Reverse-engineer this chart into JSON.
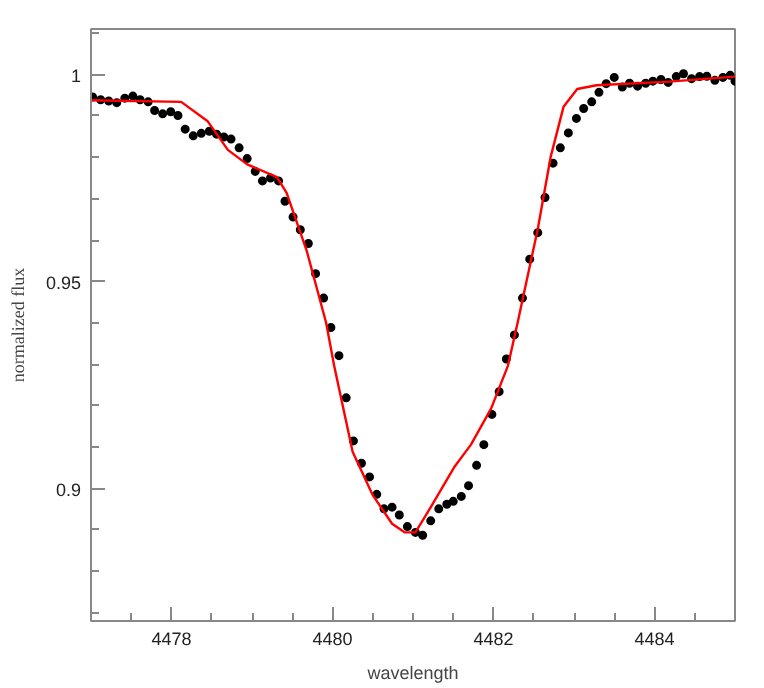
{
  "chart_data": {
    "type": "scatter",
    "xlabel": "wavelength",
    "ylabel": "normalized flux",
    "xlim": [
      4477,
      4485
    ],
    "ylim": [
      0.868,
      1.011
    ],
    "xticks": [
      4478,
      4480,
      4482,
      4484
    ],
    "yticks": [
      {
        "value": 0.9,
        "label": "0.9"
      },
      0.95,
      1
    ],
    "grid": false,
    "series": [
      {
        "marker": "circle",
        "color": "#000000",
        "x": [
          4477.02,
          4477.12,
          4477.22,
          4477.32,
          4477.42,
          4477.52,
          4477.61,
          4477.71,
          4477.79,
          4477.89,
          4477.99,
          4478.08,
          4478.17,
          4478.27,
          4478.37,
          4478.47,
          4478.56,
          4478.65,
          4478.74,
          4478.84,
          4478.94,
          4479.04,
          4479.13,
          4479.23,
          4479.33,
          4479.41,
          4479.51,
          4479.6,
          4479.7,
          4479.79,
          4479.89,
          4479.98,
          4480.08,
          4480.17,
          4480.26,
          4480.36,
          4480.46,
          4480.55,
          4480.64,
          4480.74,
          4480.83,
          4480.93,
          4481.03,
          4481.12,
          4481.22,
          4481.32,
          4481.42,
          4481.5,
          4481.6,
          4481.69,
          4481.79,
          4481.88,
          4481.98,
          4482.07,
          4482.16,
          4482.26,
          4482.36,
          4482.45,
          4482.55,
          4482.64,
          4482.74,
          4482.83,
          4482.93,
          4483.03,
          4483.12,
          4483.22,
          4483.31,
          4483.4,
          4483.5,
          4483.6,
          4483.69,
          4483.79,
          4483.89,
          4483.98,
          4484.08,
          4484.17,
          4484.27,
          4484.36,
          4484.46,
          4484.56,
          4484.65,
          4484.75,
          4484.85,
          4484.94,
          4485.0
        ],
        "values": [
          0.9946,
          0.9939,
          0.9936,
          0.9932,
          0.9943,
          0.9948,
          0.9939,
          0.9934,
          0.9913,
          0.9905,
          0.991,
          0.9901,
          0.9868,
          0.9852,
          0.9858,
          0.9863,
          0.9856,
          0.9849,
          0.9844,
          0.9823,
          0.9797,
          0.9766,
          0.9743,
          0.975,
          0.9743,
          0.9694,
          0.9656,
          0.9625,
          0.9592,
          0.9519,
          0.946,
          0.9389,
          0.9321,
          0.9219,
          0.9115,
          0.9061,
          0.9028,
          0.8986,
          0.8951,
          0.8955,
          0.8936,
          0.8908,
          0.8894,
          0.8887,
          0.8922,
          0.8951,
          0.8962,
          0.8969,
          0.8981,
          0.9007,
          0.9056,
          0.9106,
          0.9179,
          0.9234,
          0.9313,
          0.9371,
          0.946,
          0.9554,
          0.9618,
          0.9703,
          0.9786,
          0.9823,
          0.9859,
          0.9894,
          0.9918,
          0.9934,
          0.9957,
          0.9978,
          0.9993,
          0.997,
          0.9979,
          0.9972,
          0.9979,
          0.9984,
          0.9988,
          0.9981,
          0.9995,
          1.0002,
          0.999,
          0.9995,
          0.9996,
          0.9986,
          0.9993,
          0.9998,
          0.9984
        ]
      },
      {
        "type": "line",
        "color": "#ff0000",
        "x": [
          4477.0,
          4478.12,
          4478.45,
          4478.7,
          4478.94,
          4479.31,
          4479.43,
          4479.68,
          4479.92,
          4480.02,
          4480.25,
          4480.5,
          4480.74,
          4480.9,
          4481.03,
          4481.23,
          4481.52,
          4481.72,
          4481.97,
          4482.18,
          4482.3,
          4482.55,
          4482.71,
          4482.87,
          4483.04,
          4483.28,
          4484.18,
          4485.0
        ],
        "values": [
          0.9938,
          0.9934,
          0.9887,
          0.9818,
          0.9783,
          0.9752,
          0.9714,
          0.9574,
          0.9401,
          0.9297,
          0.9089,
          0.8984,
          0.8915,
          0.8894,
          0.8894,
          0.8958,
          0.9054,
          0.9106,
          0.9193,
          0.9297,
          0.9401,
          0.9627,
          0.9801,
          0.9922,
          0.9965,
          0.9974,
          0.9983,
          0.9995
        ]
      }
    ]
  }
}
